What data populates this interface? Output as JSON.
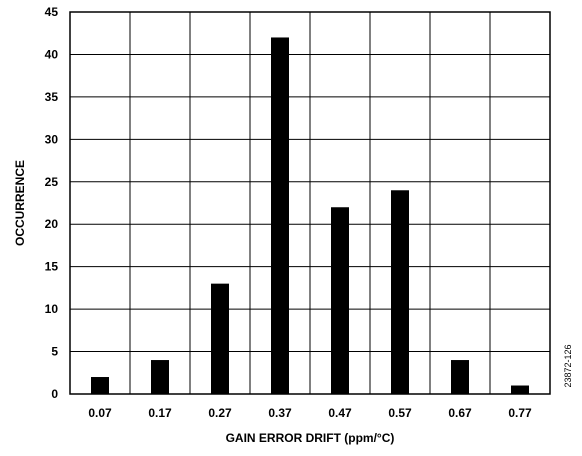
{
  "chart_data": {
    "type": "bar",
    "categories": [
      "0.07",
      "0.17",
      "0.27",
      "0.37",
      "0.47",
      "0.57",
      "0.67",
      "0.77"
    ],
    "values": [
      2,
      4,
      13,
      42,
      22,
      24,
      4,
      1
    ],
    "xlabel": "GAIN ERROR DRIFT (ppm/°C)",
    "ylabel": "OCCURRENCE",
    "ylim": [
      0,
      45
    ],
    "yticks": [
      "0",
      "5",
      "10",
      "15",
      "20",
      "25",
      "30",
      "35",
      "40",
      "45"
    ],
    "grid": true,
    "bar_color": "#000000",
    "figure_id": "23872-126"
  }
}
